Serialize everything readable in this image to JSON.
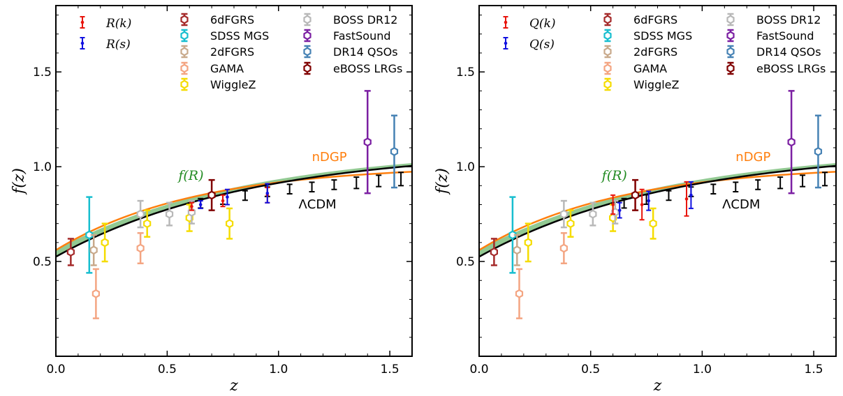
{
  "colors": {
    "R_k": "#e8140c",
    "R_s": "#1010e0",
    "6dFGRS": "#a52a2a",
    "SDSS MGS": "#17becf",
    "2dFGRS": "#c8a98b",
    "GAMA": "#f4a582",
    "WiggleZ": "#f5dc00",
    "BOSS DR12": "#b8b8b8",
    "FastSound": "#7b1fa2",
    "DR14 QSOs": "#4682b4",
    "eBOSS LRGs": "#800000",
    "lcdm": "#000000",
    "ndgp": "#ff7f0e",
    "fR_band": "#7fbf7f",
    "fR_label": "#228b22"
  },
  "chart_data": [
    {
      "type": "line",
      "xlabel": "z",
      "ylabel": "f(z)",
      "xlim": [
        0.0,
        1.6
      ],
      "ylim": [
        0.0,
        1.85
      ],
      "xticks": [
        "0.0",
        "0.5",
        "1.0",
        "1.5"
      ],
      "yticks": [
        "0.5",
        "1.0",
        "1.5"
      ],
      "curve_labels": {
        "ndgp": "nDGP",
        "fR": "f(R)",
        "lcdm": "ΛCDM"
      },
      "legend": [
        {
          "label": "R(k)",
          "math": true
        },
        {
          "label": "R(s)",
          "math": true
        },
        {
          "label": "6dFGRS"
        },
        {
          "label": "SDSS MGS"
        },
        {
          "label": "2dFGRS"
        },
        {
          "label": "GAMA"
        },
        {
          "label": "WiggleZ"
        },
        {
          "label": "BOSS DR12"
        },
        {
          "label": "FastSound"
        },
        {
          "label": "DR14 QSOs"
        },
        {
          "label": "eBOSS LRGs"
        }
      ],
      "survey_points": [
        {
          "name": "6dFGRS",
          "x": 0.067,
          "y": 0.55,
          "err": 0.07
        },
        {
          "name": "SDSS MGS",
          "x": 0.15,
          "y": 0.64,
          "err": 0.2
        },
        {
          "name": "2dFGRS",
          "x": 0.17,
          "y": 0.56,
          "err": 0.08
        },
        {
          "name": "GAMA",
          "x": 0.18,
          "y": 0.33,
          "err": 0.13
        },
        {
          "name": "GAMA",
          "x": 0.38,
          "y": 0.57,
          "err": 0.08
        },
        {
          "name": "WiggleZ",
          "x": 0.22,
          "y": 0.6,
          "err": 0.1
        },
        {
          "name": "WiggleZ",
          "x": 0.41,
          "y": 0.7,
          "err": 0.07
        },
        {
          "name": "WiggleZ",
          "x": 0.6,
          "y": 0.73,
          "err": 0.07
        },
        {
          "name": "WiggleZ",
          "x": 0.78,
          "y": 0.7,
          "err": 0.08
        },
        {
          "name": "BOSS DR12",
          "x": 0.38,
          "y": 0.75,
          "err": 0.07
        },
        {
          "name": "BOSS DR12",
          "x": 0.51,
          "y": 0.75,
          "err": 0.06
        },
        {
          "name": "BOSS DR12",
          "x": 0.61,
          "y": 0.76,
          "err": 0.06
        },
        {
          "name": "FastSound",
          "x": 1.4,
          "y": 1.13,
          "err": 0.27
        },
        {
          "name": "DR14 QSOs",
          "x": 1.52,
          "y": 1.08,
          "err": 0.19
        },
        {
          "name": "eBOSS LRGs",
          "x": 0.7,
          "y": 0.85,
          "err": 0.08
        }
      ],
      "R_k": [
        {
          "x": 0.61,
          "y": 0.79,
          "err": 0.02
        },
        {
          "x": 0.75,
          "y": 0.82,
          "err": 0.03
        },
        {
          "x": 0.95,
          "y": 0.85,
          "err": 0.04
        }
      ],
      "R_s": [
        {
          "x": 0.65,
          "y": 0.8,
          "err": 0.02
        },
        {
          "x": 0.77,
          "y": 0.84,
          "err": 0.04
        },
        {
          "x": 0.95,
          "y": 0.86,
          "err": 0.05
        }
      ],
      "forecast": [
        {
          "x": 0.65,
          "y": 0.807,
          "err": 0.025
        },
        {
          "x": 0.75,
          "y": 0.827,
          "err": 0.025
        },
        {
          "x": 0.85,
          "y": 0.848,
          "err": 0.025
        },
        {
          "x": 0.95,
          "y": 0.868,
          "err": 0.025
        },
        {
          "x": 1.05,
          "y": 0.882,
          "err": 0.025
        },
        {
          "x": 1.15,
          "y": 0.893,
          "err": 0.025
        },
        {
          "x": 1.25,
          "y": 0.905,
          "err": 0.025
        },
        {
          "x": 1.35,
          "y": 0.915,
          "err": 0.03
        },
        {
          "x": 1.45,
          "y": 0.925,
          "err": 0.03
        },
        {
          "x": 1.55,
          "y": 0.935,
          "err": 0.035
        }
      ]
    },
    {
      "type": "line",
      "xlabel": "z",
      "ylabel": "f(z)",
      "xlim": [
        0.0,
        1.6
      ],
      "ylim": [
        0.0,
        1.85
      ],
      "xticks": [
        "0.0",
        "0.5",
        "1.0",
        "1.5"
      ],
      "yticks": [
        "0.5",
        "1.0",
        "1.5"
      ],
      "curve_labels": {
        "ndgp": "nDGP",
        "fR": "f(R)",
        "lcdm": "ΛCDM"
      },
      "legend": [
        {
          "label": "Q(k)",
          "math": true
        },
        {
          "label": "Q(s)",
          "math": true
        },
        {
          "label": "6dFGRS"
        },
        {
          "label": "SDSS MGS"
        },
        {
          "label": "2dFGRS"
        },
        {
          "label": "GAMA"
        },
        {
          "label": "WiggleZ"
        },
        {
          "label": "BOSS DR12"
        },
        {
          "label": "FastSound"
        },
        {
          "label": "DR14 QSOs"
        },
        {
          "label": "eBOSS LRGs"
        }
      ],
      "survey_points": [
        {
          "name": "6dFGRS",
          "x": 0.067,
          "y": 0.55,
          "err": 0.07
        },
        {
          "name": "SDSS MGS",
          "x": 0.15,
          "y": 0.64,
          "err": 0.2
        },
        {
          "name": "2dFGRS",
          "x": 0.17,
          "y": 0.56,
          "err": 0.08
        },
        {
          "name": "GAMA",
          "x": 0.18,
          "y": 0.33,
          "err": 0.13
        },
        {
          "name": "GAMA",
          "x": 0.38,
          "y": 0.57,
          "err": 0.08
        },
        {
          "name": "WiggleZ",
          "x": 0.22,
          "y": 0.6,
          "err": 0.1
        },
        {
          "name": "WiggleZ",
          "x": 0.41,
          "y": 0.7,
          "err": 0.07
        },
        {
          "name": "WiggleZ",
          "x": 0.6,
          "y": 0.73,
          "err": 0.07
        },
        {
          "name": "WiggleZ",
          "x": 0.78,
          "y": 0.7,
          "err": 0.08
        },
        {
          "name": "BOSS DR12",
          "x": 0.38,
          "y": 0.75,
          "err": 0.07
        },
        {
          "name": "BOSS DR12",
          "x": 0.51,
          "y": 0.75,
          "err": 0.06
        },
        {
          "name": "BOSS DR12",
          "x": 0.61,
          "y": 0.76,
          "err": 0.06
        },
        {
          "name": "FastSound",
          "x": 1.4,
          "y": 1.13,
          "err": 0.27
        },
        {
          "name": "DR14 QSOs",
          "x": 1.52,
          "y": 1.08,
          "err": 0.19
        },
        {
          "name": "eBOSS LRGs",
          "x": 0.7,
          "y": 0.85,
          "err": 0.08
        }
      ],
      "R_k": [
        {
          "x": 0.6,
          "y": 0.8,
          "err": 0.05
        },
        {
          "x": 0.73,
          "y": 0.8,
          "err": 0.08
        },
        {
          "x": 0.93,
          "y": 0.83,
          "err": 0.09
        }
      ],
      "R_s": [
        {
          "x": 0.63,
          "y": 0.77,
          "err": 0.04
        },
        {
          "x": 0.76,
          "y": 0.82,
          "err": 0.05
        },
        {
          "x": 0.95,
          "y": 0.85,
          "err": 0.07
        }
      ],
      "forecast": [
        {
          "x": 0.65,
          "y": 0.807,
          "err": 0.025
        },
        {
          "x": 0.75,
          "y": 0.827,
          "err": 0.025
        },
        {
          "x": 0.85,
          "y": 0.848,
          "err": 0.025
        },
        {
          "x": 0.95,
          "y": 0.868,
          "err": 0.025
        },
        {
          "x": 1.05,
          "y": 0.882,
          "err": 0.025
        },
        {
          "x": 1.15,
          "y": 0.893,
          "err": 0.025
        },
        {
          "x": 1.25,
          "y": 0.905,
          "err": 0.025
        },
        {
          "x": 1.35,
          "y": 0.915,
          "err": 0.03
        },
        {
          "x": 1.45,
          "y": 0.925,
          "err": 0.03
        },
        {
          "x": 1.55,
          "y": 0.935,
          "err": 0.035
        }
      ]
    }
  ]
}
